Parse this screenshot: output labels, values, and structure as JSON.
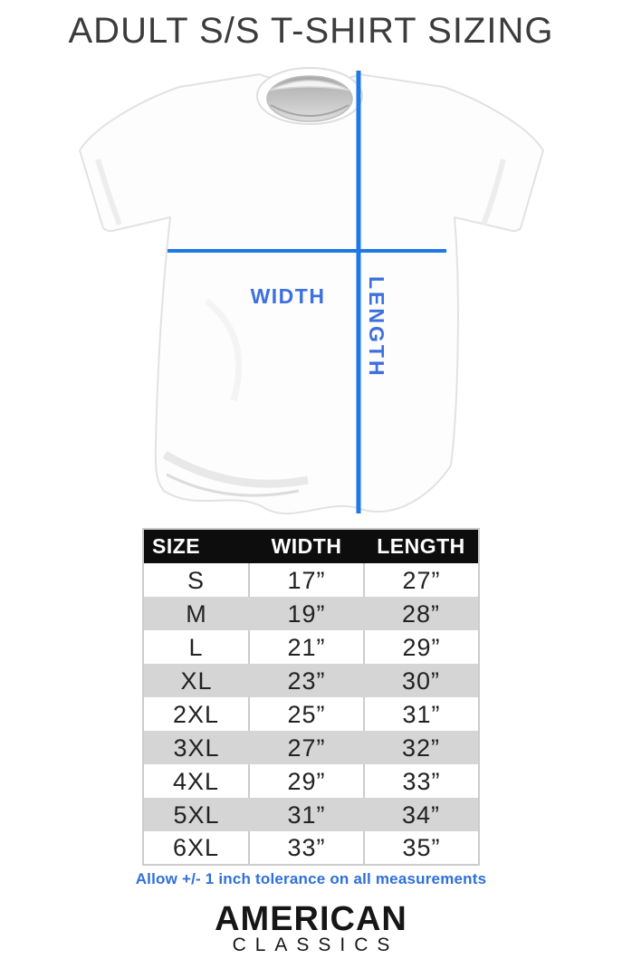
{
  "title": "ADULT S/S T-SHIRT SIZING",
  "diagram": {
    "width_label": "WIDTH",
    "length_label": "LENGTH",
    "line_color": "#1e78e8",
    "label_color": "#3d6fdd"
  },
  "table": {
    "headers": [
      "SIZE",
      "WIDTH",
      "LENGTH"
    ],
    "rows": [
      [
        "S",
        "17”",
        "27”"
      ],
      [
        "M",
        "19”",
        "28”"
      ],
      [
        "L",
        "21”",
        "29”"
      ],
      [
        "XL",
        "23”",
        "30”"
      ],
      [
        "2XL",
        "25”",
        "31”"
      ],
      [
        "3XL",
        "27”",
        "32”"
      ],
      [
        "4XL",
        "29”",
        "33”"
      ],
      [
        "5XL",
        "31”",
        "34”"
      ],
      [
        "6XL",
        "33”",
        "35”"
      ]
    ],
    "row_alt_color": "#d5d5d5",
    "header_bg": "#0d0d0d"
  },
  "tolerance_note": "Allow +/- 1 inch tolerance on all measurements",
  "brand": {
    "name": "AMERICAN",
    "subname": "CLASSICS"
  }
}
